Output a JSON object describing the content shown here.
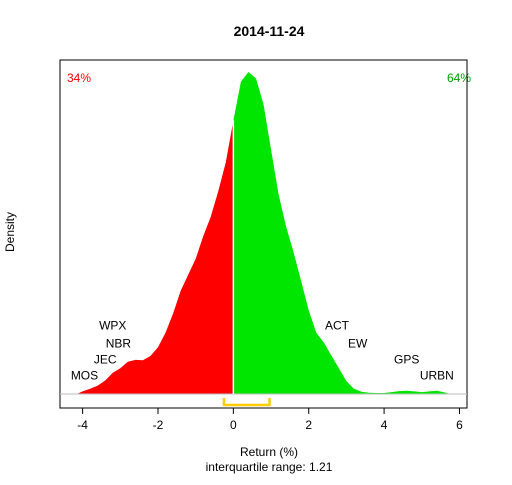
{
  "chart_data": {
    "type": "area",
    "title": "2014-11-24",
    "xlabel": "Return (%)",
    "ylabel": "Density",
    "subtitle": "interquartile range: 1.21",
    "xlim": [
      -4.6,
      6.2
    ],
    "ylim": [
      0,
      1.0
    ],
    "x_ticks": [
      -4,
      -2,
      0,
      2,
      4,
      6
    ],
    "split_x": 0,
    "pct_left": "34%",
    "pct_right": "64%",
    "colors": {
      "negative": "#ff0000",
      "positive": "#00e600",
      "iqr": "#ffcc00",
      "baseline": "#bebebe",
      "pct_left": "#ff0000",
      "pct_right": "#00a000"
    },
    "iqr": [
      -0.25,
      0.96
    ],
    "density": [
      [
        -4.15,
        0.0
      ],
      [
        -4.0,
        0.008
      ],
      [
        -3.8,
        0.016
      ],
      [
        -3.6,
        0.026
      ],
      [
        -3.4,
        0.042
      ],
      [
        -3.2,
        0.066
      ],
      [
        -3.0,
        0.08
      ],
      [
        -2.8,
        0.1
      ],
      [
        -2.6,
        0.106
      ],
      [
        -2.4,
        0.105
      ],
      [
        -2.2,
        0.118
      ],
      [
        -2.0,
        0.145
      ],
      [
        -1.8,
        0.19
      ],
      [
        -1.6,
        0.25
      ],
      [
        -1.4,
        0.32
      ],
      [
        -1.2,
        0.37
      ],
      [
        -1.0,
        0.42
      ],
      [
        -0.8,
        0.49
      ],
      [
        -0.6,
        0.55
      ],
      [
        -0.4,
        0.63
      ],
      [
        -0.2,
        0.72
      ],
      [
        0.0,
        0.85
      ],
      [
        0.2,
        0.97
      ],
      [
        0.4,
        1.0
      ],
      [
        0.6,
        0.98
      ],
      [
        0.8,
        0.9
      ],
      [
        1.0,
        0.76
      ],
      [
        1.2,
        0.62
      ],
      [
        1.4,
        0.52
      ],
      [
        1.6,
        0.44
      ],
      [
        1.8,
        0.35
      ],
      [
        2.0,
        0.26
      ],
      [
        2.2,
        0.19
      ],
      [
        2.4,
        0.16
      ],
      [
        2.6,
        0.12
      ],
      [
        2.8,
        0.08
      ],
      [
        3.0,
        0.04
      ],
      [
        3.2,
        0.016
      ],
      [
        3.4,
        0.007
      ],
      [
        3.6,
        0.004
      ],
      [
        3.8,
        0.003
      ],
      [
        4.0,
        0.003
      ],
      [
        4.2,
        0.006
      ],
      [
        4.4,
        0.009
      ],
      [
        4.6,
        0.01
      ],
      [
        4.8,
        0.008
      ],
      [
        5.0,
        0.006
      ],
      [
        5.2,
        0.008
      ],
      [
        5.4,
        0.01
      ],
      [
        5.6,
        0.005
      ],
      [
        5.75,
        0.0
      ]
    ],
    "annotations": [
      {
        "label": "WPX",
        "x": -3.2,
        "y": 0.2
      },
      {
        "label": "NBR",
        "x": -3.05,
        "y": 0.145
      },
      {
        "label": "JEC",
        "x": -3.4,
        "y": 0.095
      },
      {
        "label": "MOS",
        "x": -3.95,
        "y": 0.045
      },
      {
        "label": "ACT",
        "x": 2.75,
        "y": 0.2
      },
      {
        "label": "EW",
        "x": 3.3,
        "y": 0.145
      },
      {
        "label": "GPS",
        "x": 4.6,
        "y": 0.095
      },
      {
        "label": "URBN",
        "x": 5.4,
        "y": 0.045
      }
    ]
  }
}
